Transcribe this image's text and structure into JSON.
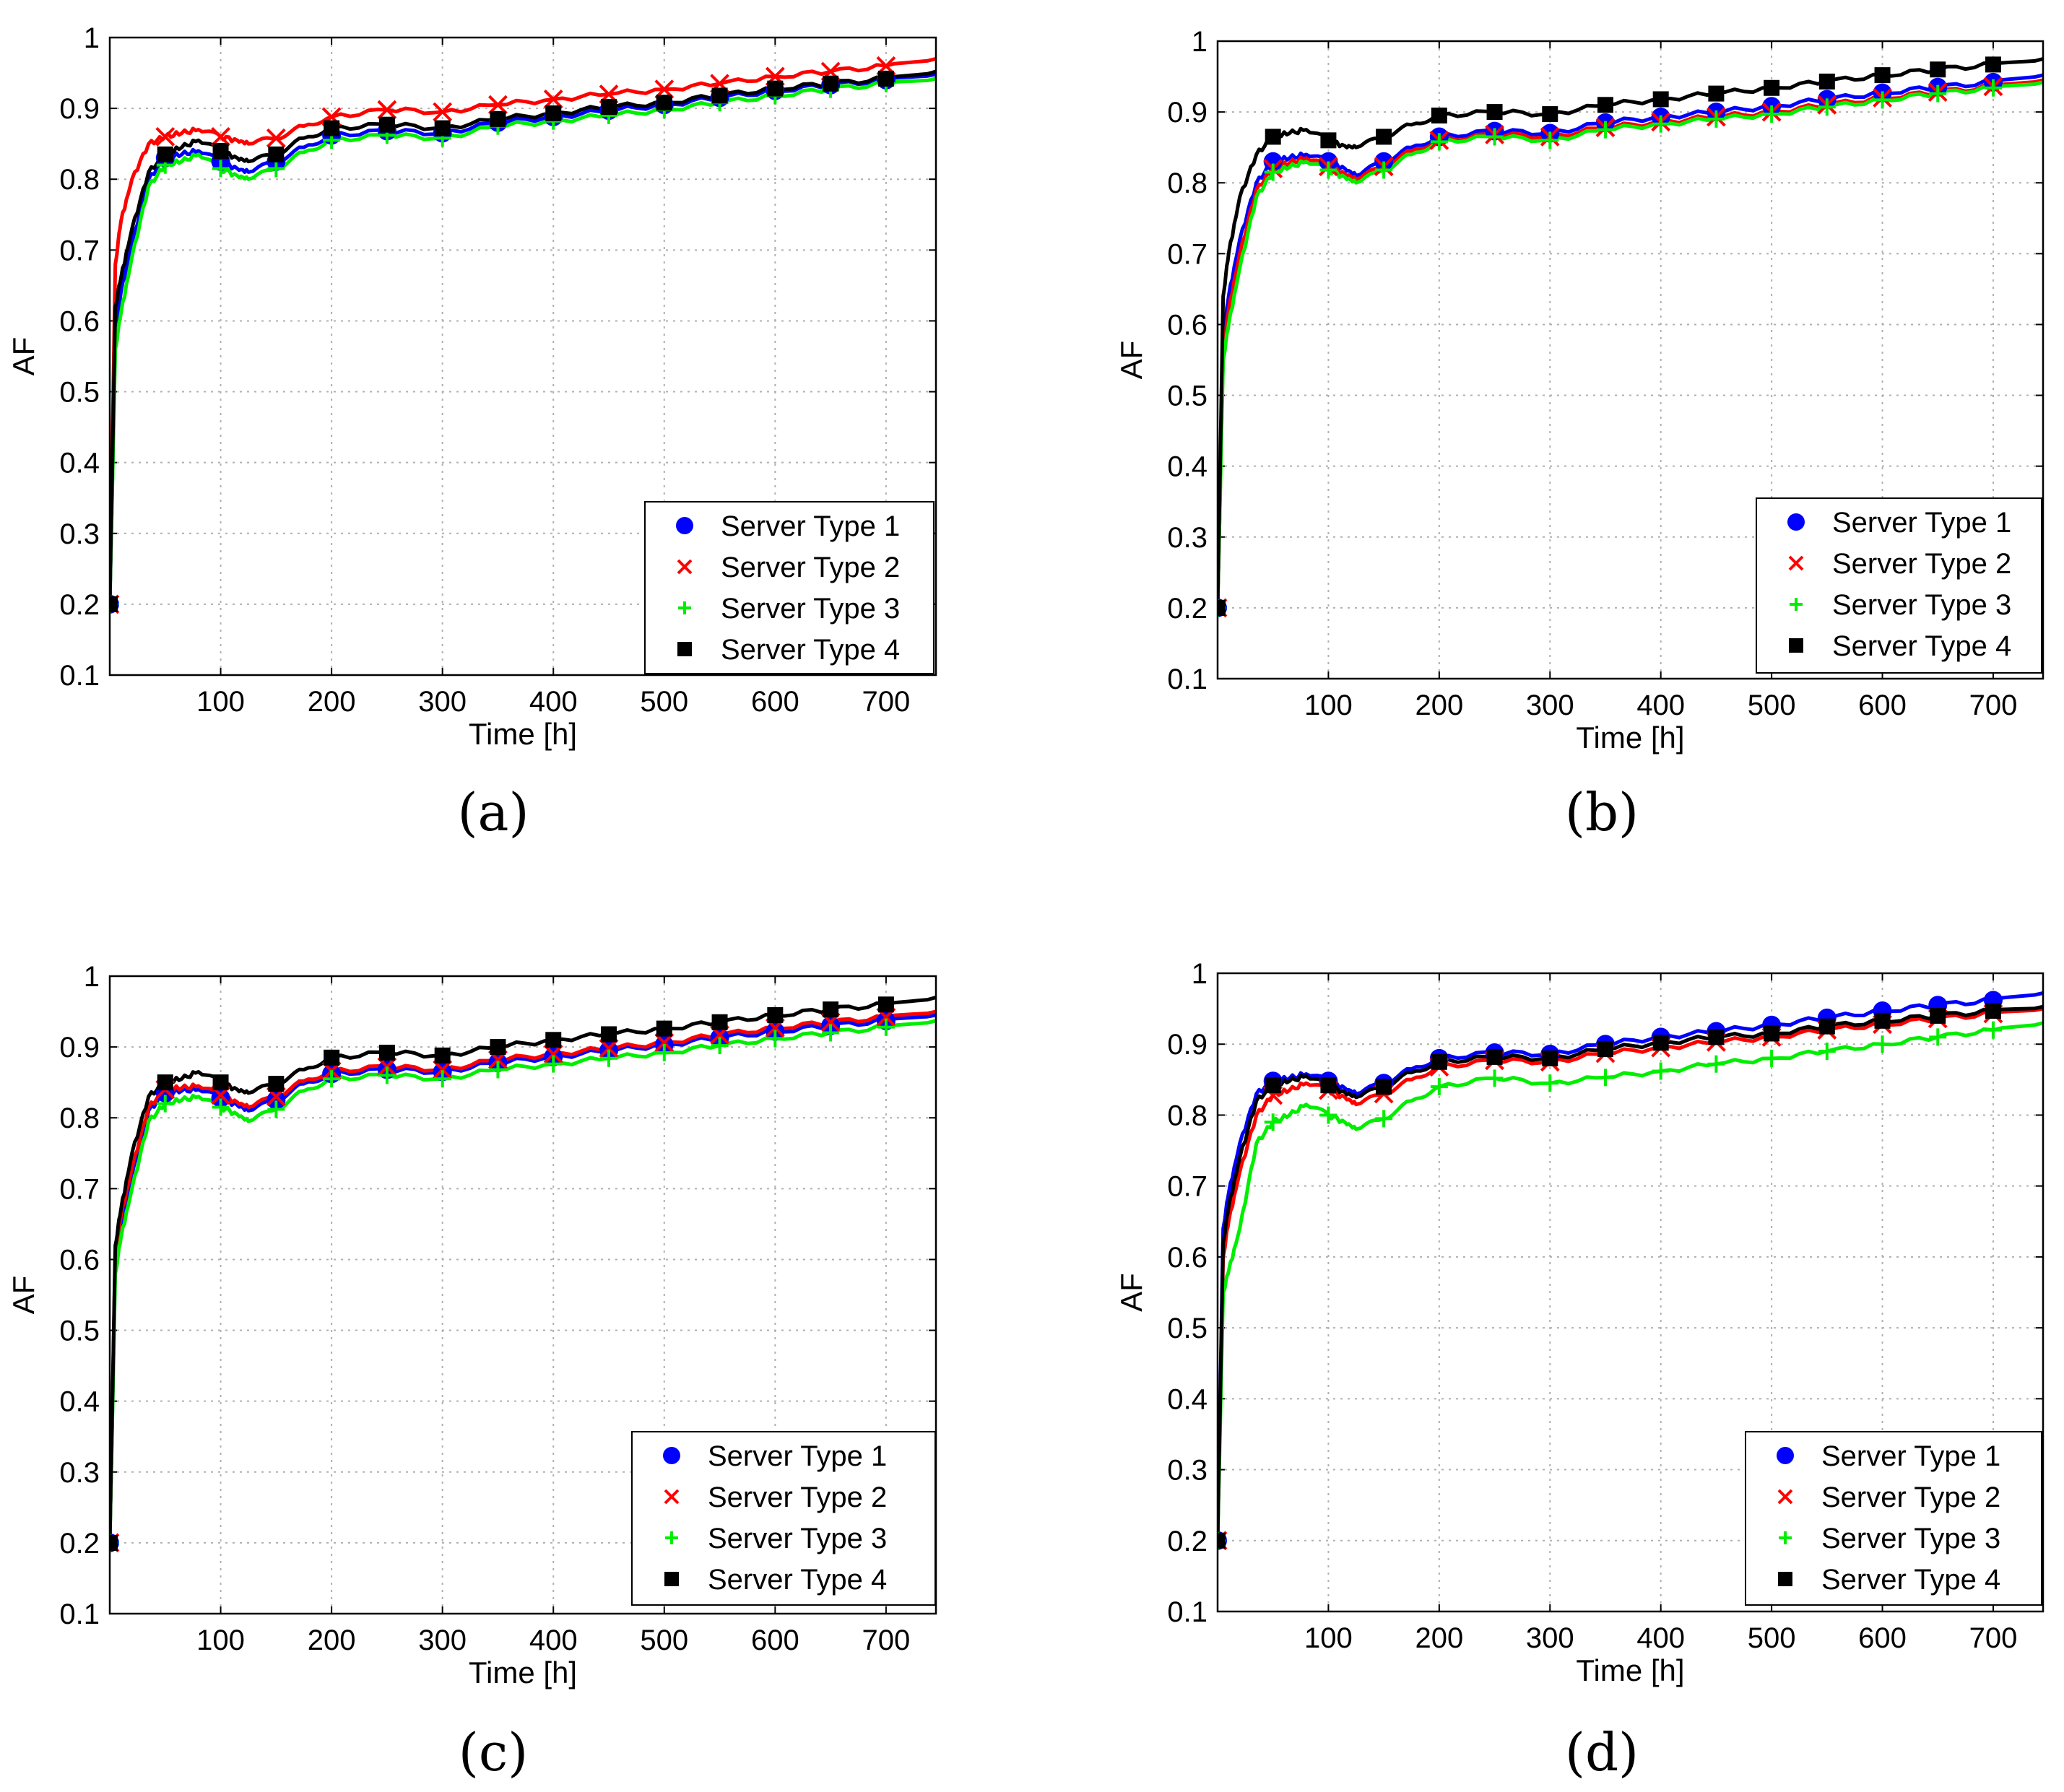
{
  "figure": {
    "xlabel": "Time [h]",
    "ylabel": "AF",
    "x_ticks": [
      "100",
      "200",
      "300",
      "400",
      "500",
      "600",
      "700"
    ],
    "y_ticks": [
      "0.1",
      "0.2",
      "0.3",
      "0.4",
      "0.5",
      "0.6",
      "0.7",
      "0.8",
      "0.9",
      "1"
    ],
    "series_meta": [
      {
        "name": "Server Type 1",
        "color": "#0000ff",
        "marker": "circle"
      },
      {
        "name": "Server Type 2",
        "color": "#ff0000",
        "marker": "x"
      },
      {
        "name": "Server Type 3",
        "color": "#00ee00",
        "marker": "plus"
      },
      {
        "name": "Server Type 4",
        "color": "#000000",
        "marker": "square"
      }
    ]
  },
  "chart_data": [
    {
      "panel": "(a)",
      "type": "line",
      "xlabel": "Time [h]",
      "ylabel": "AF",
      "xlim": [
        0,
        745
      ],
      "ylim": [
        0.1,
        1.0
      ],
      "legend": "bottom-right",
      "x": [
        0,
        5,
        10,
        20,
        35,
        50,
        65,
        80,
        100,
        115,
        125,
        150,
        175,
        200,
        250,
        300,
        350,
        400,
        450,
        500,
        550,
        600,
        650,
        700,
        745
      ],
      "series": [
        {
          "name": "Server Type 1",
          "values": [
            0.2,
            0.58,
            0.64,
            0.71,
            0.8,
            0.83,
            0.835,
            0.84,
            0.825,
            0.815,
            0.81,
            0.825,
            0.845,
            0.862,
            0.868,
            0.865,
            0.88,
            0.888,
            0.897,
            0.905,
            0.915,
            0.925,
            0.933,
            0.94,
            0.948
          ]
        },
        {
          "name": "Server Type 2",
          "values": [
            0.2,
            0.68,
            0.74,
            0.8,
            0.85,
            0.86,
            0.865,
            0.87,
            0.86,
            0.855,
            0.85,
            0.858,
            0.875,
            0.888,
            0.898,
            0.895,
            0.905,
            0.913,
            0.92,
            0.927,
            0.935,
            0.945,
            0.952,
            0.96,
            0.97
          ]
        },
        {
          "name": "Server Type 3",
          "values": [
            0.2,
            0.56,
            0.61,
            0.69,
            0.79,
            0.82,
            0.825,
            0.835,
            0.815,
            0.805,
            0.8,
            0.815,
            0.838,
            0.855,
            0.862,
            0.858,
            0.875,
            0.882,
            0.89,
            0.898,
            0.908,
            0.918,
            0.927,
            0.935,
            0.942
          ]
        },
        {
          "name": "Server Type 4",
          "values": [
            0.2,
            0.62,
            0.66,
            0.73,
            0.81,
            0.835,
            0.845,
            0.855,
            0.84,
            0.83,
            0.825,
            0.835,
            0.858,
            0.872,
            0.877,
            0.872,
            0.885,
            0.893,
            0.902,
            0.908,
            0.918,
            0.928,
            0.935,
            0.942,
            0.952
          ]
        }
      ]
    },
    {
      "panel": "(b)",
      "type": "line",
      "xlabel": "Time [h]",
      "ylabel": "AF",
      "xlim": [
        0,
        745
      ],
      "ylim": [
        0.1,
        1.0
      ],
      "legend": "bottom-right",
      "x": [
        0,
        5,
        10,
        20,
        35,
        50,
        65,
        80,
        100,
        115,
        125,
        150,
        175,
        200,
        250,
        300,
        350,
        400,
        450,
        500,
        550,
        600,
        650,
        700,
        745
      ],
      "series": [
        {
          "name": "Server Type 1",
          "values": [
            0.2,
            0.58,
            0.64,
            0.72,
            0.8,
            0.83,
            0.835,
            0.84,
            0.83,
            0.82,
            0.81,
            0.83,
            0.85,
            0.865,
            0.873,
            0.87,
            0.885,
            0.893,
            0.9,
            0.908,
            0.918,
            0.927,
            0.935,
            0.942,
            0.952
          ]
        },
        {
          "name": "Server Type 2",
          "values": [
            0.2,
            0.56,
            0.62,
            0.7,
            0.79,
            0.82,
            0.828,
            0.835,
            0.823,
            0.813,
            0.805,
            0.823,
            0.845,
            0.86,
            0.868,
            0.865,
            0.878,
            0.886,
            0.893,
            0.9,
            0.91,
            0.92,
            0.928,
            0.936,
            0.945
          ]
        },
        {
          "name": "Server Type 3",
          "values": [
            0.2,
            0.55,
            0.6,
            0.68,
            0.78,
            0.815,
            0.822,
            0.83,
            0.818,
            0.808,
            0.8,
            0.818,
            0.84,
            0.858,
            0.865,
            0.86,
            0.875,
            0.883,
            0.89,
            0.897,
            0.907,
            0.917,
            0.926,
            0.934,
            0.942
          ]
        },
        {
          "name": "Server Type 4",
          "values": [
            0.2,
            0.64,
            0.7,
            0.78,
            0.84,
            0.865,
            0.87,
            0.875,
            0.86,
            0.852,
            0.85,
            0.865,
            0.882,
            0.895,
            0.9,
            0.897,
            0.91,
            0.918,
            0.926,
            0.934,
            0.943,
            0.952,
            0.96,
            0.967,
            0.975
          ]
        }
      ]
    },
    {
      "panel": "(c)",
      "type": "line",
      "xlabel": "Time [h]",
      "ylabel": "AF",
      "xlim": [
        0,
        745
      ],
      "ylim": [
        0.1,
        1.0
      ],
      "legend": "bottom-right",
      "x": [
        0,
        5,
        10,
        20,
        35,
        50,
        65,
        80,
        100,
        115,
        125,
        150,
        175,
        200,
        250,
        300,
        350,
        400,
        450,
        500,
        550,
        600,
        650,
        700,
        745
      ],
      "series": [
        {
          "name": "Server Type 1",
          "values": [
            0.2,
            0.6,
            0.65,
            0.72,
            0.81,
            0.835,
            0.838,
            0.84,
            0.828,
            0.818,
            0.81,
            0.825,
            0.848,
            0.862,
            0.868,
            0.865,
            0.878,
            0.886,
            0.895,
            0.903,
            0.913,
            0.922,
            0.93,
            0.937,
            0.945
          ]
        },
        {
          "name": "Server Type 2",
          "values": [
            0.2,
            0.61,
            0.66,
            0.73,
            0.815,
            0.84,
            0.842,
            0.845,
            0.832,
            0.822,
            0.815,
            0.83,
            0.852,
            0.866,
            0.872,
            0.868,
            0.882,
            0.89,
            0.898,
            0.906,
            0.917,
            0.927,
            0.935,
            0.942,
            0.95
          ]
        },
        {
          "name": "Server Type 3",
          "values": [
            0.2,
            0.58,
            0.63,
            0.7,
            0.795,
            0.82,
            0.825,
            0.83,
            0.815,
            0.805,
            0.795,
            0.812,
            0.838,
            0.855,
            0.86,
            0.855,
            0.868,
            0.876,
            0.884,
            0.892,
            0.902,
            0.912,
            0.92,
            0.928,
            0.937
          ]
        },
        {
          "name": "Server Type 4",
          "values": [
            0.2,
            0.62,
            0.67,
            0.75,
            0.83,
            0.85,
            0.855,
            0.865,
            0.85,
            0.84,
            0.835,
            0.848,
            0.868,
            0.885,
            0.892,
            0.888,
            0.9,
            0.91,
            0.918,
            0.926,
            0.935,
            0.945,
            0.953,
            0.96,
            0.97
          ]
        }
      ]
    },
    {
      "panel": "(d)",
      "type": "line",
      "xlabel": "Time [h]",
      "ylabel": "AF",
      "xlim": [
        0,
        745
      ],
      "ylim": [
        0.1,
        1.0
      ],
      "legend": "bottom-right",
      "x": [
        0,
        5,
        10,
        20,
        35,
        50,
        65,
        80,
        100,
        115,
        125,
        150,
        175,
        200,
        250,
        300,
        350,
        400,
        450,
        500,
        550,
        600,
        650,
        700,
        745
      ],
      "series": [
        {
          "name": "Server Type 1",
          "values": [
            0.2,
            0.64,
            0.69,
            0.76,
            0.83,
            0.848,
            0.852,
            0.858,
            0.848,
            0.838,
            0.83,
            0.845,
            0.865,
            0.88,
            0.888,
            0.886,
            0.9,
            0.91,
            0.918,
            0.927,
            0.937,
            0.947,
            0.955,
            0.962,
            0.972
          ]
        },
        {
          "name": "Server Type 2",
          "values": [
            0.2,
            0.6,
            0.65,
            0.72,
            0.8,
            0.828,
            0.835,
            0.845,
            0.835,
            0.825,
            0.815,
            0.83,
            0.85,
            0.868,
            0.877,
            0.875,
            0.887,
            0.895,
            0.903,
            0.91,
            0.92,
            0.928,
            0.936,
            0.943,
            0.95
          ]
        },
        {
          "name": "Server Type 3",
          "values": [
            0.2,
            0.55,
            0.58,
            0.64,
            0.76,
            0.79,
            0.8,
            0.815,
            0.8,
            0.79,
            0.78,
            0.795,
            0.82,
            0.84,
            0.852,
            0.845,
            0.853,
            0.862,
            0.872,
            0.88,
            0.89,
            0.9,
            0.91,
            0.92,
            0.93
          ]
        },
        {
          "name": "Server Type 4",
          "values": [
            0.2,
            0.62,
            0.67,
            0.74,
            0.82,
            0.842,
            0.848,
            0.855,
            0.842,
            0.832,
            0.825,
            0.84,
            0.86,
            0.875,
            0.882,
            0.88,
            0.893,
            0.902,
            0.91,
            0.915,
            0.925,
            0.933,
            0.94,
            0.947,
            0.953
          ]
        }
      ]
    }
  ]
}
